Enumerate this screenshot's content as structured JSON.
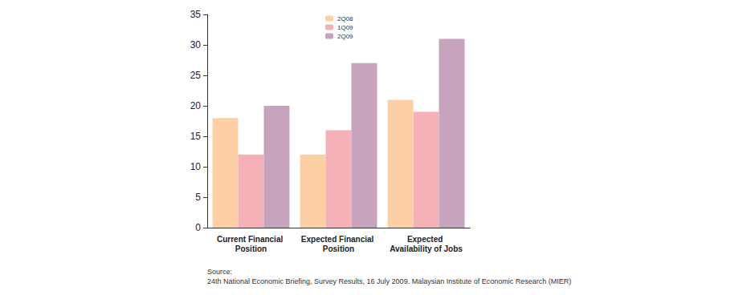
{
  "chart_data": {
    "type": "bar",
    "categories": [
      "Current Financial Position",
      "Expected Financial Position",
      "Expected Availability of Jobs"
    ],
    "series": [
      {
        "name": "2Q08",
        "color": "#fcd0a4",
        "values": [
          18,
          12,
          21
        ]
      },
      {
        "name": "1Q09",
        "color": "#f6b0b8",
        "values": [
          12,
          16,
          19
        ]
      },
      {
        "name": "2Q09",
        "color": "#c8a3be",
        "values": [
          20,
          27,
          31
        ]
      }
    ],
    "ylim": [
      0,
      35
    ],
    "yticks": [
      0,
      5,
      10,
      15,
      20,
      25,
      30,
      35
    ],
    "grid": false,
    "legend": "top-left",
    "source_heading": "Source:",
    "source": "24th National Economic Briefing, Survey Results, 16 July 2009. Malaysian Institute of Economic Research (MIER)"
  }
}
